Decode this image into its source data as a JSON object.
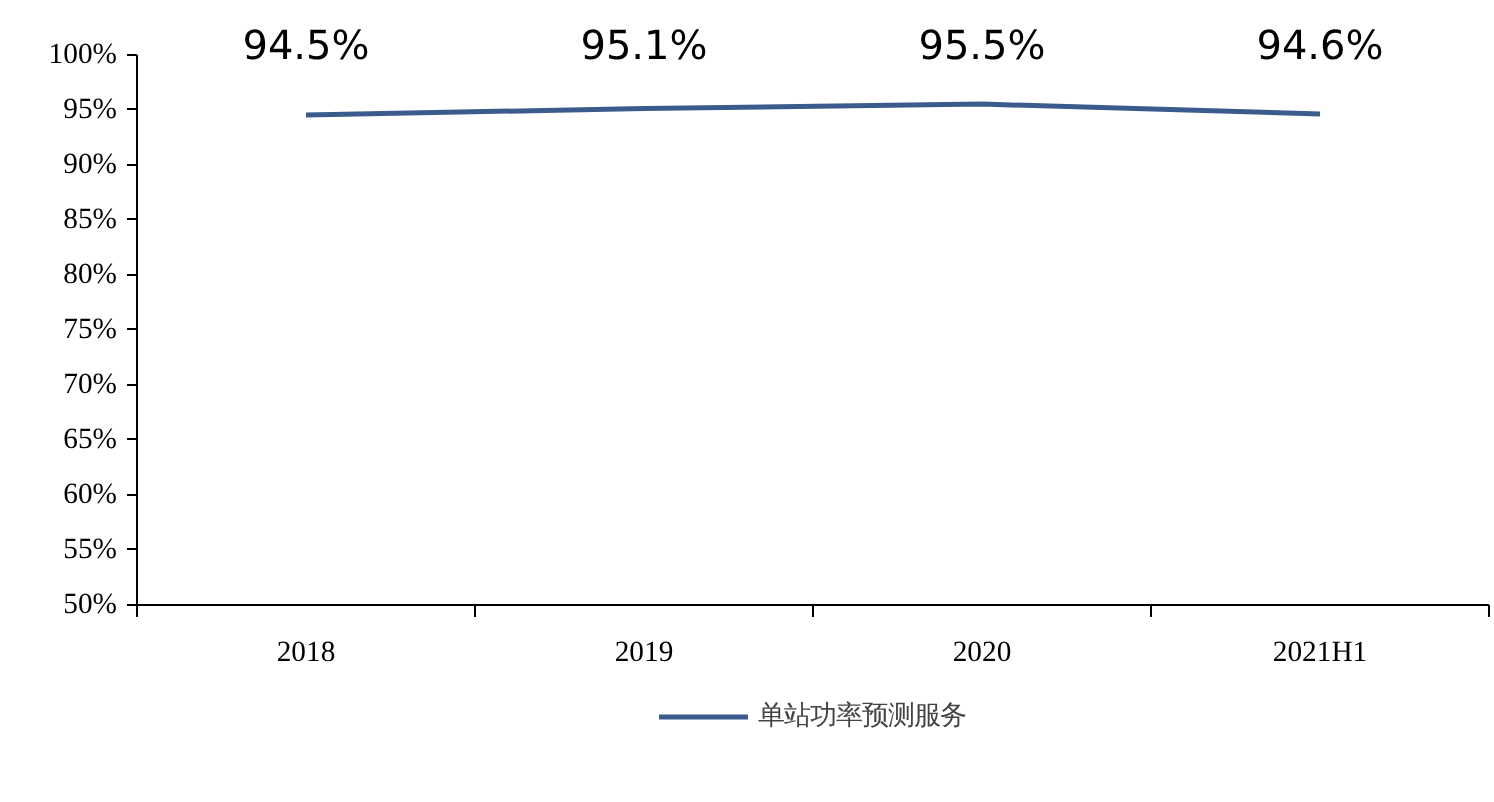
{
  "chart_data": {
    "type": "line",
    "categories": [
      "2018",
      "2019",
      "2020",
      "2021H1"
    ],
    "series": [
      {
        "name": "单站功率预测服务",
        "color": "#3b5b8d",
        "values": [
          94.5,
          95.1,
          95.5,
          94.6
        ],
        "value_labels": [
          "94.5%",
          "95.1%",
          "95.5%",
          "94.6%"
        ]
      }
    ],
    "ylim": [
      50,
      100
    ],
    "yticks": [
      {
        "value": 50,
        "label": "50%"
      },
      {
        "value": 55,
        "label": "55%"
      },
      {
        "value": 60,
        "label": "60%"
      },
      {
        "value": 65,
        "label": "65%"
      },
      {
        "value": 70,
        "label": "70%"
      },
      {
        "value": 75,
        "label": "75%"
      },
      {
        "value": 80,
        "label": "80%"
      },
      {
        "value": 85,
        "label": "85%"
      },
      {
        "value": 90,
        "label": "90%"
      },
      {
        "value": 95,
        "label": "95%"
      },
      {
        "value": 100,
        "label": "100%"
      }
    ],
    "grid": false,
    "legend": "bottom",
    "marker": "none",
    "line_style": "solid"
  }
}
